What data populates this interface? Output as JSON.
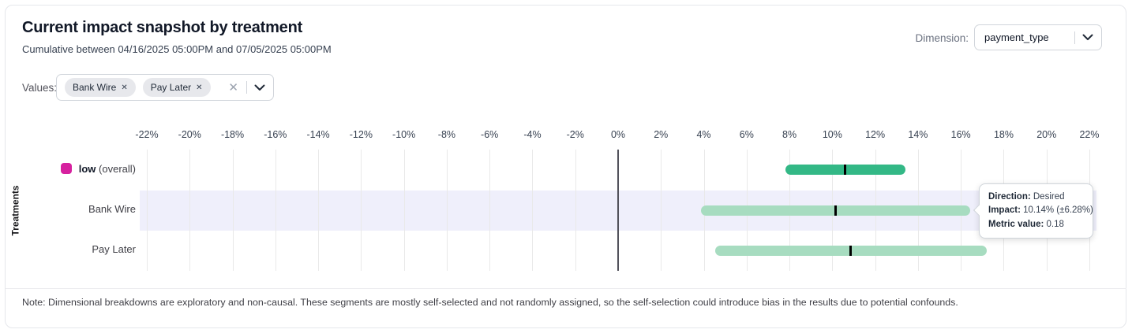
{
  "header": {
    "title": "Current impact snapshot by treatment",
    "subtitle": "Cumulative between 04/16/2025 05:00PM and 07/05/2025 05:00PM",
    "dimension_label": "Dimension:",
    "dimension_value": "payment_type"
  },
  "filters": {
    "values_label": "Values:",
    "chips": [
      {
        "label": "Bank Wire"
      },
      {
        "label": "Pay Later"
      }
    ]
  },
  "chart_data": {
    "type": "bar",
    "subtype": "horizontal-interval",
    "title": "Current impact snapshot by treatment",
    "xlabel": "",
    "ylabel": "Treatments",
    "x_unit": "%",
    "xlim": [
      -22,
      22
    ],
    "tick_step": 2,
    "tick_labels": [
      "-22%",
      "-20%",
      "-18%",
      "-16%",
      "-14%",
      "-12%",
      "-10%",
      "-8%",
      "-6%",
      "-4%",
      "-2%",
      "0%",
      "2%",
      "4%",
      "6%",
      "8%",
      "10%",
      "12%",
      "14%",
      "16%",
      "18%",
      "20%",
      "22%"
    ],
    "grid": true,
    "rows": [
      {
        "label": "low",
        "label_suffix": "(overall)",
        "swatch_color": "#d6219f",
        "low": 7.8,
        "mid": 10.6,
        "high": 13.4,
        "bar_color": "#33b886",
        "highlighted": false
      },
      {
        "label": "Bank Wire",
        "low": 3.86,
        "mid": 10.14,
        "high": 16.42,
        "bar_color": "#a7dcc0",
        "highlighted": true
      },
      {
        "label": "Pay Later",
        "low": 4.54,
        "mid": 10.87,
        "high": 17.2,
        "bar_color": "#a7dcc0",
        "highlighted": false
      }
    ],
    "colors": {
      "row_highlight": "#efeffb",
      "grid_line": "#e9e9e9",
      "zero_line": "#52525b",
      "marker": "#000000"
    }
  },
  "tooltip": {
    "rows": [
      {
        "label": "Direction:",
        "value": "Desired"
      },
      {
        "label": "Impact:",
        "value": "10.14% (±6.28%)"
      },
      {
        "label": "Metric value:",
        "value": "0.18"
      }
    ]
  },
  "note": "Note: Dimensional breakdowns are exploratory and non-causal. These segments are mostly self-selected and not randomly assigned, so the self-selection could introduce bias in the results due to potential confounds."
}
